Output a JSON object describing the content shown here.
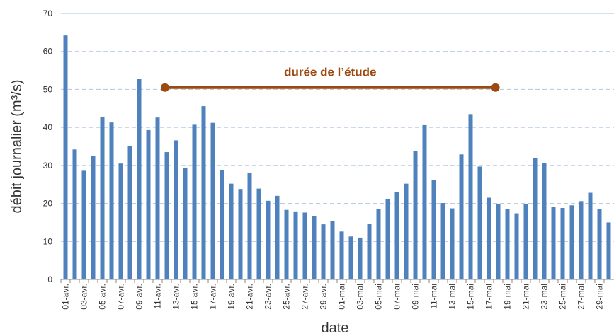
{
  "chart_data": {
    "type": "bar",
    "x_label": "date",
    "y_label": "débit journalier (m³/s)",
    "categories": [
      "01-avr.",
      null,
      "03-avr.",
      null,
      "05-avr.",
      null,
      "07-avr.",
      null,
      "09-avr.",
      null,
      "11-avr.",
      null,
      "13-avr.",
      null,
      "15-avr.",
      null,
      "17-avr.",
      null,
      "19-avr.",
      null,
      "21-avr.",
      null,
      "23-avr.",
      null,
      "25-avr.",
      null,
      "27-avr.",
      null,
      "29-avr.",
      null,
      "01-mai",
      null,
      "03-mai",
      null,
      "05-mai",
      null,
      "07-mai",
      null,
      "09-mai",
      null,
      "11-mai",
      null,
      "13-mai",
      null,
      "15-mai",
      null,
      "17-mai",
      null,
      "19-mai",
      null,
      "21-mai",
      null,
      "23-mai",
      null,
      "25-mai",
      null,
      "27-mai",
      null,
      "29-mai",
      null
    ],
    "values": [
      64.2,
      34.2,
      28.6,
      32.5,
      42.8,
      41.3,
      30.5,
      35.1,
      52.7,
      39.3,
      42.6,
      33.5,
      36.6,
      29.3,
      40.7,
      45.6,
      41.2,
      28.8,
      25.2,
      23.8,
      28.1,
      23.9,
      20.7,
      22.0,
      18.3,
      17.9,
      17.6,
      16.7,
      14.5,
      15.4,
      12.6,
      11.3,
      11.0,
      14.6,
      18.6,
      21.1,
      23.0,
      25.2,
      33.8,
      40.6,
      26.2,
      20.1,
      18.7,
      32.9,
      43.5,
      29.7,
      21.5,
      19.8,
      18.5,
      17.4,
      19.8,
      32.0,
      30.6,
      19.0,
      18.8,
      19.5,
      20.6,
      22.8,
      18.5,
      15.0
    ],
    "color": "#4f81bd",
    "ylim": [
      0,
      70
    ],
    "yticks": [
      0,
      10,
      20,
      30,
      40,
      50,
      60,
      70
    ],
    "grid": true,
    "annotation": {
      "text": "durée de l’étude",
      "y": 50.5,
      "color": "#9c4a12"
    }
  }
}
